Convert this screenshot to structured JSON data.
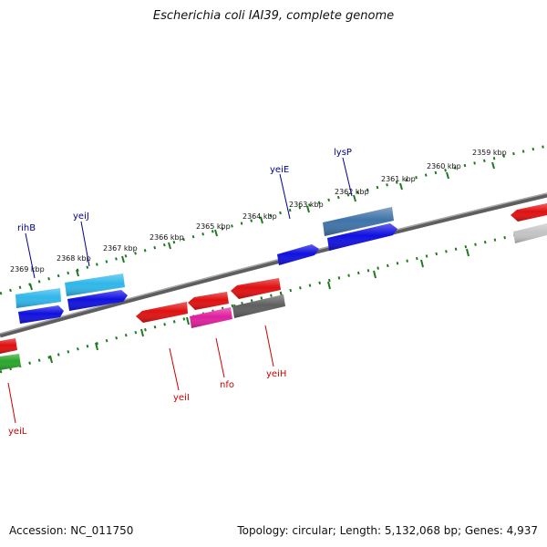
{
  "title": "Escherichia coli IAI39, complete genome",
  "footer": {
    "accession": "Accession: NC_011750",
    "summary": "Topology: circular; Length: 5,132,068 bp; Genes: 4,937"
  },
  "ticks": [
    "2369 kbp",
    "2368 kbp",
    "2367 kbp",
    "2366 kbp",
    "2365 kbp",
    "2364 kbp",
    "2363 kbp",
    "2362 kbp",
    "2361 kbp",
    "2360 kbp",
    "2359 kbp"
  ],
  "labels": {
    "rihB": "rihB",
    "yeiJ": "yeiJ",
    "yeiE": "yeiE",
    "lysP": "lysP",
    "yeiI": "yeiI",
    "nfo": "nfo",
    "yeiH": "yeiH",
    "yeiL": "yeiL"
  },
  "colors": {
    "backbone": "#7a7a7a",
    "tick_track": "#1f7a1f",
    "label_forward": "#00008b",
    "label_reverse": "#cc0000",
    "cyan": "#2fb7ea",
    "blue": "#1010e0",
    "steelblue": "#3f73a8",
    "red": "#e01010",
    "magenta": "#e0209e",
    "dimgray": "#5f5f5f",
    "silver": "#c4c4c4",
    "green": "#2aa52a"
  }
}
